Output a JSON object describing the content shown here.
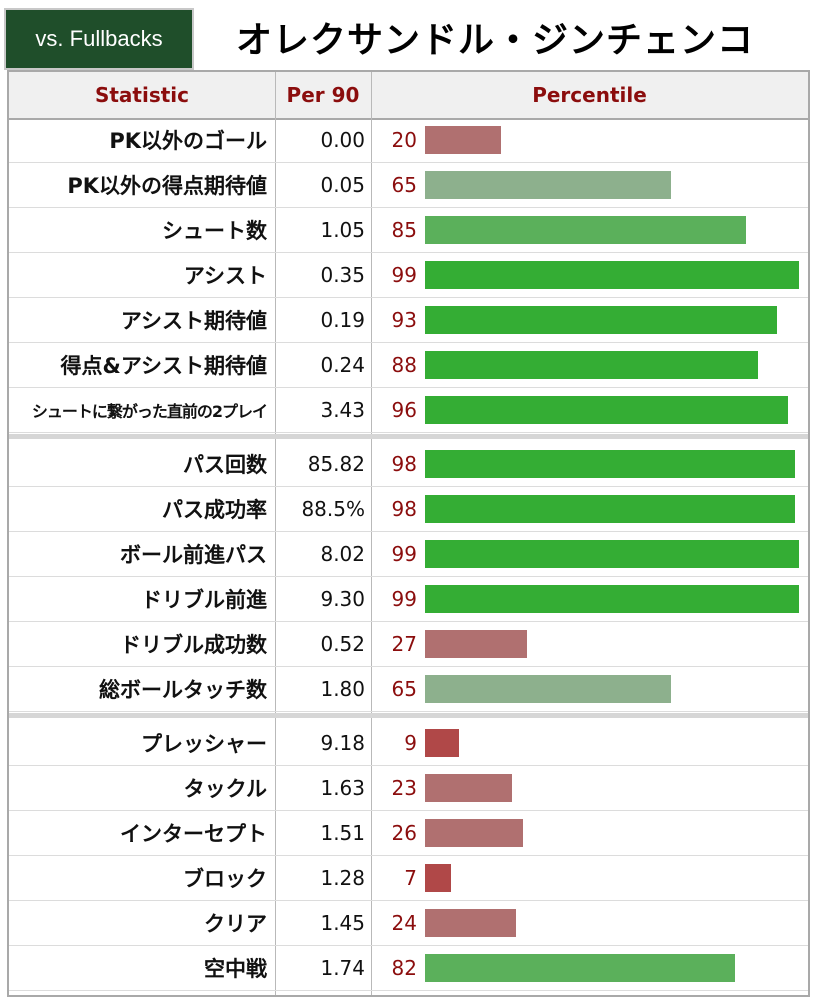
{
  "badge": {
    "label": "vs. Fullbacks"
  },
  "player_name": "オレクサンドル・ジンチェンコ",
  "headers": {
    "statistic": "Statistic",
    "per90": "Per 90",
    "percentile": "Percentile"
  },
  "colors": {
    "header_text": "#8b0d0d",
    "badge_bg": "#1f4e2a",
    "bar_elite": "#34ad34",
    "bar_high": "#5bb05b",
    "bar_mid": "#8db08d",
    "bar_low": "#b07070",
    "bar_very_low": "#b04848"
  },
  "chart_data": {
    "type": "bar",
    "xlim": [
      0,
      100
    ],
    "groups": [
      {
        "rows": [
          {
            "statistic": "PK以外のゴール",
            "per90": "0.00",
            "percentile": 20
          },
          {
            "statistic": "PK以外の得点期待値",
            "per90": "0.05",
            "percentile": 65
          },
          {
            "statistic": "シュート数",
            "per90": "1.05",
            "percentile": 85
          },
          {
            "statistic": "アシスト",
            "per90": "0.35",
            "percentile": 99
          },
          {
            "statistic": "アシスト期待値",
            "per90": "0.19",
            "percentile": 93
          },
          {
            "statistic": "得点&アシスト期待値",
            "per90": "0.24",
            "percentile": 88
          },
          {
            "statistic": "シュートに繋がった直前の2プレイ",
            "per90": "3.43",
            "percentile": 96
          }
        ]
      },
      {
        "rows": [
          {
            "statistic": "パス回数",
            "per90": "85.82",
            "percentile": 98
          },
          {
            "statistic": "パス成功率",
            "per90": "88.5%",
            "percentile": 98
          },
          {
            "statistic": "ボール前進パス",
            "per90": "8.02",
            "percentile": 99
          },
          {
            "statistic": "ドリブル前進",
            "per90": "9.30",
            "percentile": 99
          },
          {
            "statistic": "ドリブル成功数",
            "per90": "0.52",
            "percentile": 27
          },
          {
            "statistic": "総ボールタッチ数",
            "per90": "1.80",
            "percentile": 65
          }
        ]
      },
      {
        "rows": [
          {
            "statistic": "プレッシャー",
            "per90": "9.18",
            "percentile": 9
          },
          {
            "statistic": "タックル",
            "per90": "1.63",
            "percentile": 23
          },
          {
            "statistic": "インターセプト",
            "per90": "1.51",
            "percentile": 26
          },
          {
            "statistic": "ブロック",
            "per90": "1.28",
            "percentile": 7
          },
          {
            "statistic": "クリア",
            "per90": "1.45",
            "percentile": 24
          },
          {
            "statistic": "空中戦",
            "per90": "1.74",
            "percentile": 82
          }
        ]
      }
    ]
  }
}
